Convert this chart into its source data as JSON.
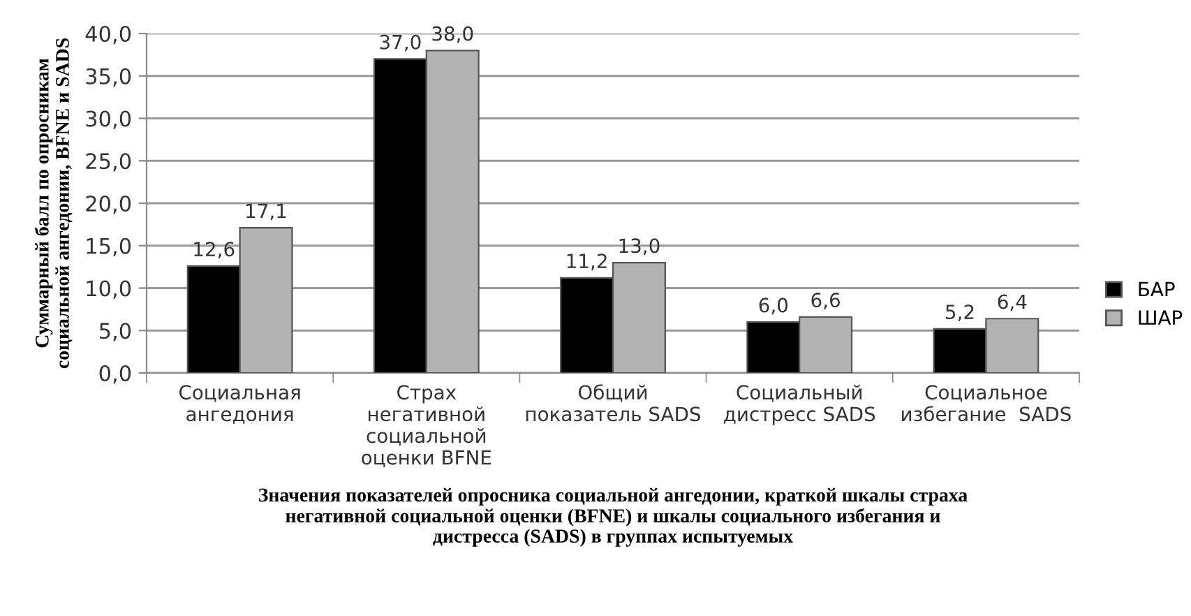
{
  "chart_data": {
    "type": "bar",
    "categories": [
      "Социальная\nангедония",
      "Страх\nнегативной\nсоциальной\nоценки BFNE",
      "Общий\nпоказатель SADS",
      "Социальный\nдистресс SADS",
      "Социальное\nизбегание  SADS"
    ],
    "series": [
      {
        "name": "БАР",
        "color": "#000000",
        "values": [
          12.6,
          37.0,
          11.2,
          6.0,
          5.2
        ],
        "value_labels": [
          "12,6",
          "37,0",
          "11,2",
          "6,0",
          "5,2"
        ]
      },
      {
        "name": "ШАР",
        "color": "#b3b3b3",
        "values": [
          17.1,
          38.0,
          13.0,
          6.6,
          6.4
        ],
        "value_labels": [
          "17,1",
          "38,0",
          "13,0",
          "6,6",
          "6,4"
        ]
      }
    ],
    "xlabel": "Значения показателей опросника социальной ангедонии, краткой шкалы страха\nнегативной социальной оценки (BFNE) и шкалы социального избегания и\nдистресса (SADS) в группах испытуемых",
    "ylabel": "Суммарный балл по опросникам\nсоциальной ангедонии, BFNE и SADS",
    "ylim": [
      0,
      40
    ],
    "yticks": [
      {
        "value": 0,
        "label": "0,0"
      },
      {
        "value": 5,
        "label": "5,0"
      },
      {
        "value": 10,
        "label": "10,0"
      },
      {
        "value": 15,
        "label": "15,0"
      },
      {
        "value": 20,
        "label": "20,0"
      },
      {
        "value": 25,
        "label": "25,0"
      },
      {
        "value": 30,
        "label": "30,0"
      },
      {
        "value": 35,
        "label": "35,0"
      },
      {
        "value": 40,
        "label": "40,0"
      }
    ],
    "grid": "y",
    "legend": "right"
  }
}
